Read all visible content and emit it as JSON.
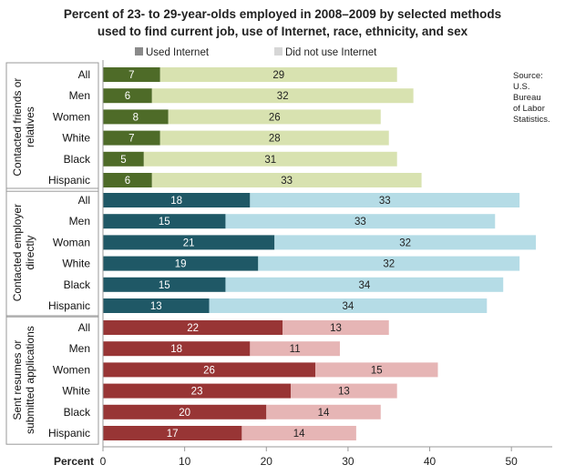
{
  "chart_data": {
    "type": "bar",
    "orientation": "horizontal",
    "stacked": true,
    "title_lines": [
      "Percent of 23- to 29-year-olds employed in 2008–2009 by selected methods",
      "used to find current job, use of Internet, race, ethnicity, and sex"
    ],
    "xlabel": "Percent",
    "xlim": [
      0,
      55
    ],
    "xticks": [
      "0",
      "10",
      "20",
      "30",
      "40",
      "50"
    ],
    "legend": {
      "position": "top",
      "entries": [
        "Used Internet",
        "Did not use Internet"
      ]
    },
    "source_lines": [
      "Source:",
      "U.S.",
      "Bureau",
      "of Labor",
      "Statistics."
    ],
    "groups": [
      {
        "label_lines": [
          "Contacted friends or",
          "relatives"
        ],
        "colors": {
          "used": "#4e6b28",
          "not_used": "#d8e2b0"
        },
        "categories": [
          "All",
          "Men",
          "Women",
          "White",
          "Black",
          "Hispanic"
        ],
        "used_internet": [
          7,
          6,
          8,
          7,
          5,
          6
        ],
        "did_not_use": [
          29,
          32,
          26,
          28,
          31,
          33
        ],
        "used_labels": [
          "7",
          "6",
          "8",
          "7",
          "5",
          "6"
        ],
        "not_used_labels": [
          "29",
          "32",
          "26",
          "28",
          "31",
          "33"
        ]
      },
      {
        "label_lines": [
          "Contacted employer",
          "directly"
        ],
        "colors": {
          "used": "#1f5866",
          "not_used": "#b5dce6"
        },
        "categories": [
          "All",
          "Men",
          "Woman",
          "White",
          "Black",
          "Hispanic"
        ],
        "used_internet": [
          18,
          15,
          21,
          19,
          15,
          13
        ],
        "did_not_use": [
          33,
          33,
          32,
          32,
          34,
          34
        ],
        "used_labels": [
          "18",
          "15",
          "21",
          "19",
          "15",
          "13"
        ],
        "not_used_labels": [
          "33",
          "33",
          "32",
          "32",
          "34",
          "34"
        ]
      },
      {
        "label_lines": [
          "Sent resumes or",
          "submitted applications"
        ],
        "colors": {
          "used": "#983535",
          "not_used": "#e6b5b5"
        },
        "categories": [
          "All",
          "Men",
          "Women",
          "White",
          "Black",
          "Hispanic"
        ],
        "used_internet": [
          22,
          18,
          26,
          23,
          20,
          17
        ],
        "did_not_use": [
          13,
          11,
          15,
          13,
          14,
          14
        ],
        "used_labels": [
          "22",
          "18",
          "26",
          "23",
          "20",
          "17"
        ],
        "not_used_labels": [
          "13",
          "11",
          "15",
          "13",
          "14",
          "14"
        ]
      }
    ],
    "legend_colors": {
      "used": "#8a8a8a",
      "not_used": "#d6d6d6"
    },
    "grid": false
  }
}
